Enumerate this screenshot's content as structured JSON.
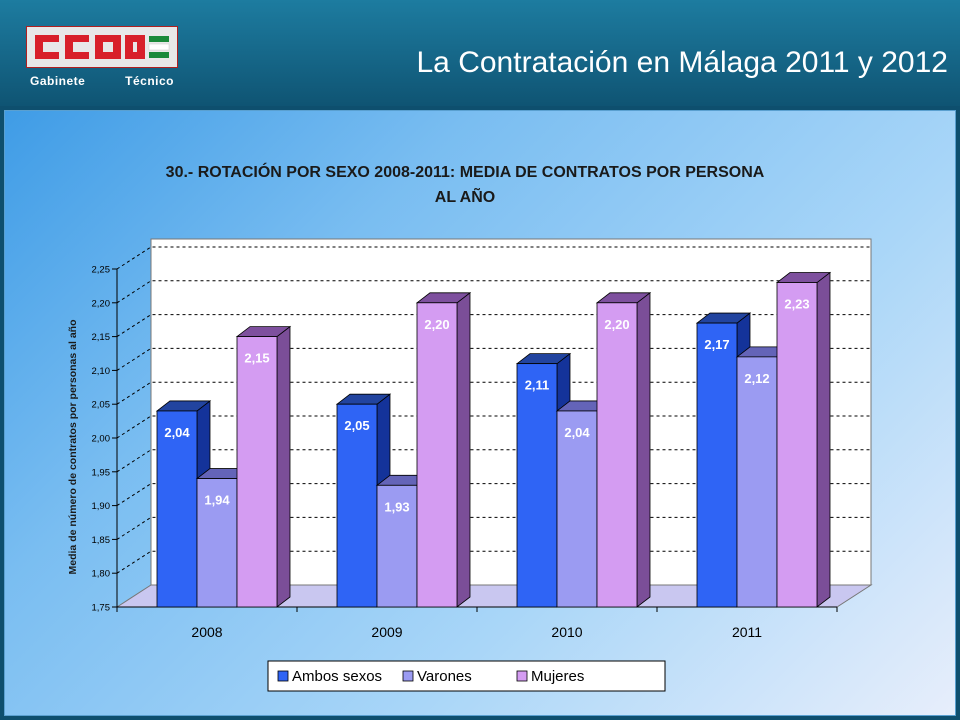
{
  "header": {
    "title": "La Contratación en Málaga 2011 y 2012",
    "logo_text": "CCOO",
    "dept_word1": "Gabinete",
    "dept_word2": "Técnico"
  },
  "colors": {
    "ambos": "#2f64f5",
    "varones": "#9b9bf2",
    "mujeres": "#d49cf2",
    "logo_red": "#d8202a",
    "logo_green": "#1a8a3a"
  },
  "chart_data": {
    "type": "bar",
    "title_line1": "30.- ROTACIÓN POR SEXO 2008-2011: MEDIA DE CONTRATOS POR PERSONA",
    "title_line2": "AL AÑO",
    "ylabel": "Media de número de contratos por personas al año",
    "xlabel": "",
    "categories": [
      "2008",
      "2009",
      "2010",
      "2011"
    ],
    "series": [
      {
        "name": "Ambos sexos",
        "values": [
          2.04,
          2.05,
          2.11,
          2.17
        ],
        "labels": [
          "2,04",
          "2,05",
          "2,11",
          "2,17"
        ]
      },
      {
        "name": "Varones",
        "values": [
          1.94,
          1.93,
          2.04,
          2.12
        ],
        "labels": [
          "1,94",
          "1,93",
          "2,04",
          "2,12"
        ]
      },
      {
        "name": "Mujeres",
        "values": [
          2.15,
          2.2,
          2.2,
          2.23
        ],
        "labels": [
          "2,15",
          "2,20",
          "2,20",
          "2,23"
        ]
      }
    ],
    "ylim": [
      1.75,
      2.25
    ],
    "yticks": [
      "1,75",
      "1,80",
      "1,85",
      "1,90",
      "1,95",
      "2,00",
      "2,05",
      "2,10",
      "2,15",
      "2,20",
      "2,25"
    ],
    "grid": true,
    "legend_position": "bottom"
  }
}
